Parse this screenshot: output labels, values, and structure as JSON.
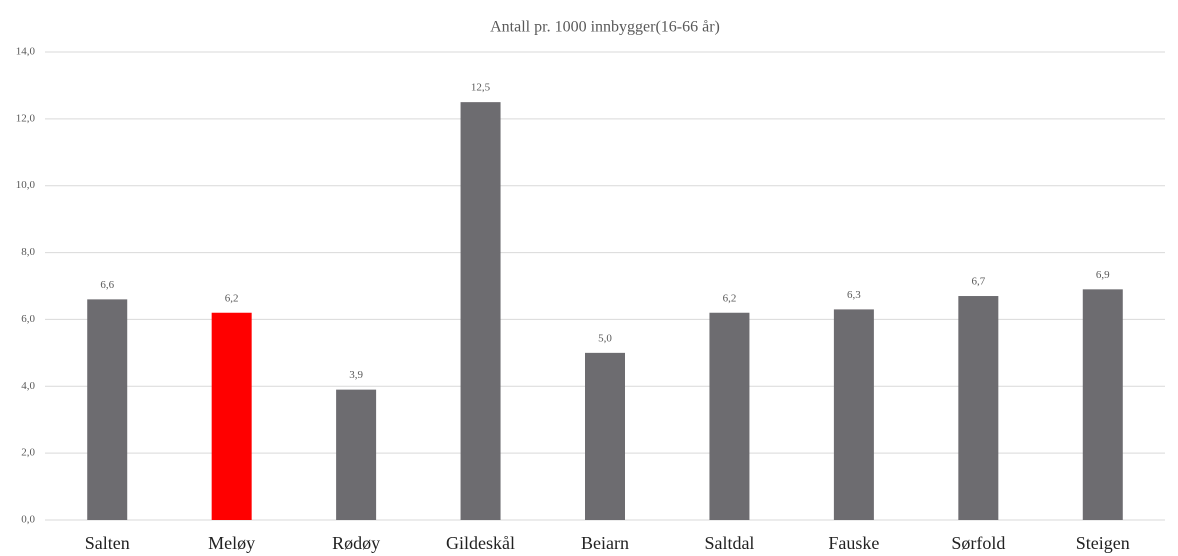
{
  "chart_data": {
    "type": "bar",
    "title": "Antall pr. 1000 innbygger(16-66 år)",
    "categories": [
      "Salten",
      "Meløy",
      "Rødøy",
      "Gildeskål",
      "Beiarn",
      "Saltdal",
      "Fauske",
      "Sørfold",
      "Steigen"
    ],
    "values": [
      6.6,
      6.2,
      3.9,
      12.5,
      5.0,
      6.2,
      6.3,
      6.7,
      6.9
    ],
    "value_labels": [
      "6,6",
      "6,2",
      "3,9",
      "12,5",
      "5,0",
      "6,2",
      "6,3",
      "6,7",
      "6,9"
    ],
    "colors": [
      "#6d6c70",
      "#ff0000",
      "#6d6c70",
      "#6d6c70",
      "#6d6c70",
      "#6d6c70",
      "#6d6c70",
      "#6d6c70",
      "#6d6c70"
    ],
    "ylim": [
      0,
      14
    ],
    "yticks": [
      {
        "value": 0,
        "label": "0,0"
      },
      {
        "value": 2,
        "label": "2,0"
      },
      {
        "value": 4,
        "label": "4,0"
      },
      {
        "value": 6,
        "label": "6,0"
      },
      {
        "value": 8,
        "label": "8,0"
      },
      {
        "value": 10,
        "label": "10,0"
      },
      {
        "value": 12,
        "label": "12,0"
      },
      {
        "value": 14,
        "label": "14,0"
      }
    ],
    "grid": true
  }
}
